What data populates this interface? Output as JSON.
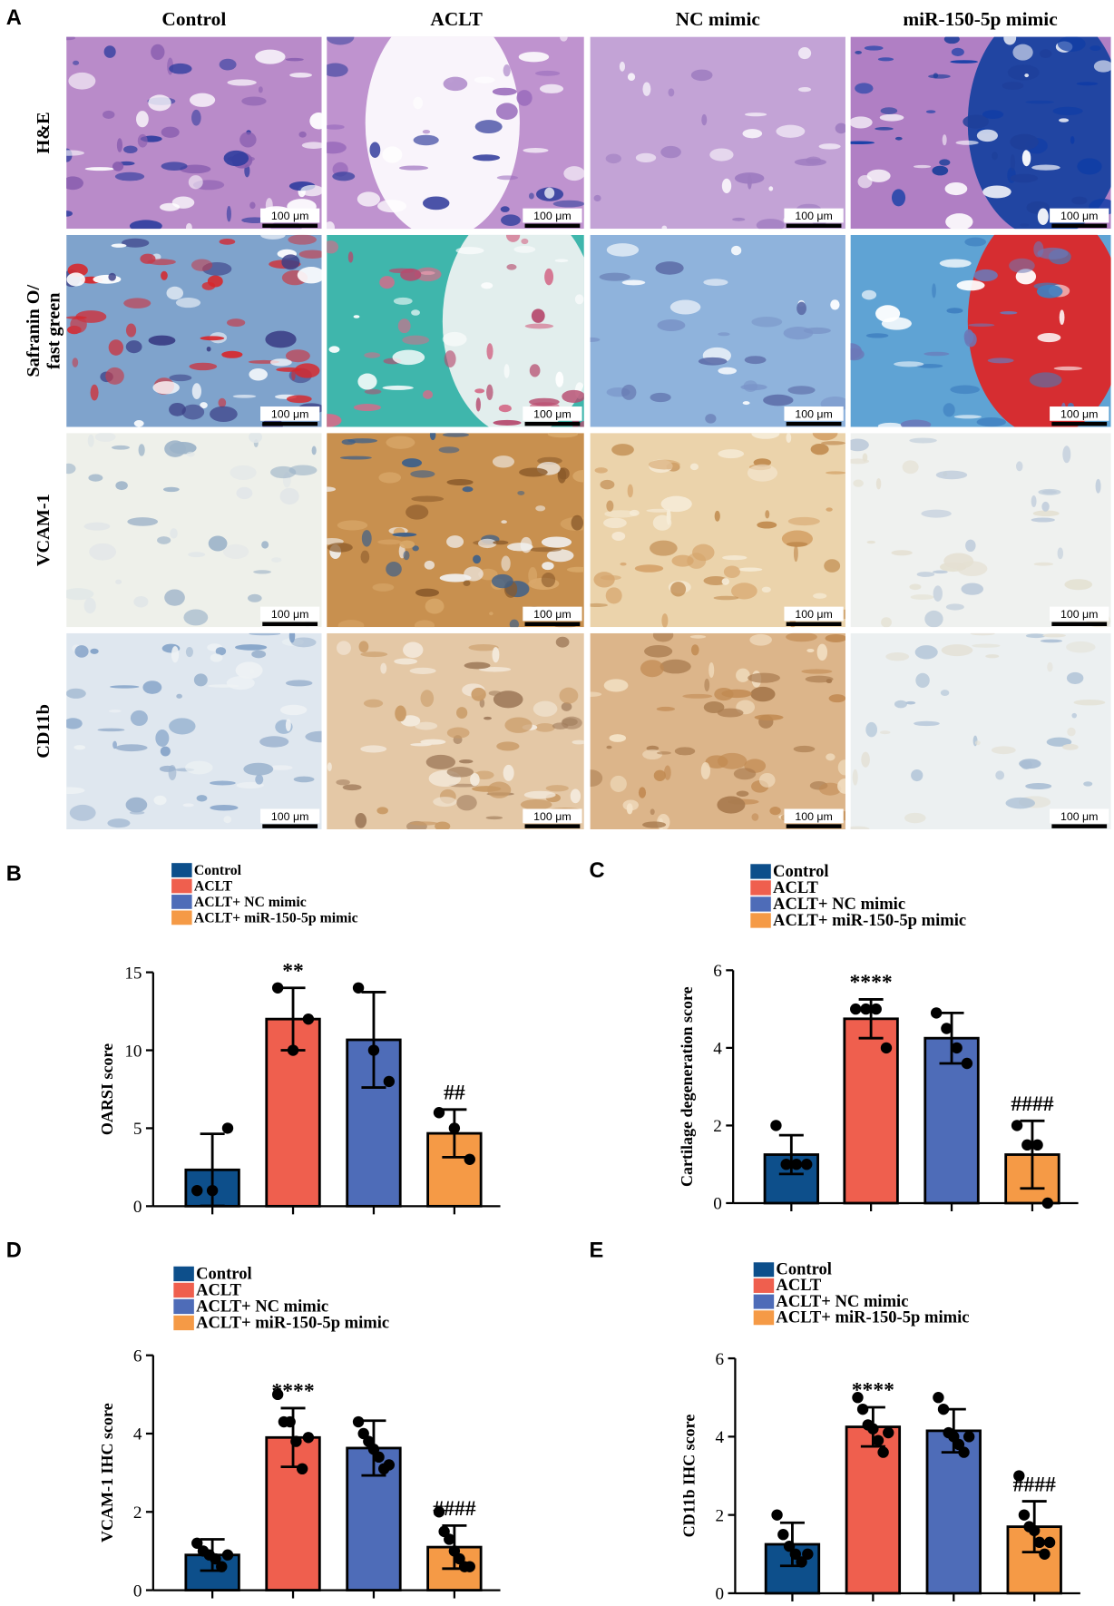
{
  "image_panel": {
    "label": "A",
    "columns": [
      "Control",
      "ACLT",
      "NC mimic",
      "miR-150-5p mimic"
    ],
    "rows": [
      [
        "H&E"
      ],
      [
        "Safranin O/",
        "fast green"
      ],
      [
        "VCAM-1"
      ],
      [
        "CD11b"
      ]
    ],
    "scale_bar": "100 μm"
  },
  "chart_data": [
    {
      "type": "bar",
      "label": "B",
      "ylabel": "OARSI score",
      "categories": [
        "Control",
        "ACLT",
        "ACLT+ NC mimic",
        "ACLT+ miR-150-5p mimic"
      ],
      "colors": [
        "#0d4f8b",
        "#ef5f4e",
        "#4e6cb8",
        "#f59a46"
      ],
      "values": [
        2.33,
        12,
        10.67,
        4.67
      ],
      "errors": [
        2.31,
        2,
        3.06,
        1.53
      ],
      "points": [
        [
          1,
          1,
          5
        ],
        [
          14,
          10,
          12
        ],
        [
          14,
          10,
          8
        ],
        [
          6,
          5,
          3
        ]
      ],
      "annotations": [
        null,
        "**",
        null,
        "##"
      ],
      "ylim": [
        0,
        15
      ],
      "yticks": [
        0,
        5,
        10,
        15
      ]
    },
    {
      "type": "bar",
      "label": "C",
      "ylabel": "Cartilage degeneration score",
      "categories": [
        "Control",
        "ACLT",
        "ACLT+ NC mimic",
        "ACLT+ miR-150-5p mimic"
      ],
      "colors": [
        "#0d4f8b",
        "#ef5f4e",
        "#4e6cb8",
        "#f59a46"
      ],
      "values": [
        1.25,
        4.75,
        4.25,
        1.25
      ],
      "errors": [
        0.5,
        0.5,
        0.65,
        0.87
      ],
      "points": [
        [
          2,
          1,
          1,
          1
        ],
        [
          5,
          5,
          5,
          4
        ],
        [
          4.9,
          4.5,
          4,
          3.6
        ],
        [
          2,
          1.5,
          1.5,
          0
        ]
      ],
      "annotations": [
        null,
        "****",
        null,
        "####"
      ],
      "ylim": [
        0,
        6
      ],
      "yticks": [
        0,
        2,
        4,
        6
      ]
    },
    {
      "type": "bar",
      "label": "D",
      "ylabel": "VCAM-1 IHC score",
      "categories": [
        "Control",
        "ACLT",
        "ACLT+ NC mimic",
        "ACLT+ miR-150-5p mimic"
      ],
      "colors": [
        "#0d4f8b",
        "#ef5f4e",
        "#4e6cb8",
        "#f59a46"
      ],
      "values": [
        0.9,
        3.9,
        3.63,
        1.1
      ],
      "errors": [
        0.4,
        0.75,
        0.7,
        0.55
      ],
      "points": [
        [
          1.2,
          1,
          0.9,
          0.8,
          0.6,
          0.9
        ],
        [
          5,
          4.3,
          4.3,
          3.8,
          3.1,
          3.9
        ],
        [
          4.3,
          4,
          3.8,
          3.6,
          3.4,
          3.1,
          3.2
        ],
        [
          2,
          1.5,
          1.3,
          1,
          0.8,
          0.6,
          0.6
        ]
      ],
      "annotations": [
        null,
        "****",
        null,
        "####"
      ],
      "ylim": [
        0,
        6
      ],
      "yticks": [
        0,
        2,
        4,
        6
      ]
    },
    {
      "type": "bar",
      "label": "E",
      "ylabel": "CD11b IHC score",
      "categories": [
        "Control",
        "ACLT",
        "ACLT+ NC mimic",
        "ACLT+ miR-150-5p mimic"
      ],
      "colors": [
        "#0d4f8b",
        "#ef5f4e",
        "#4e6cb8",
        "#f59a46"
      ],
      "values": [
        1.25,
        4.25,
        4.15,
        1.7
      ],
      "errors": [
        0.55,
        0.5,
        0.55,
        0.65
      ],
      "points": [
        [
          2,
          1.5,
          1.2,
          1,
          0.8,
          1
        ],
        [
          5,
          4.7,
          4.3,
          4.2,
          3.9,
          3.6,
          4.1
        ],
        [
          5,
          4.7,
          4.1,
          4,
          3.8,
          3.6,
          4
        ],
        [
          3,
          2,
          1.7,
          1.6,
          1.3,
          1,
          1.3
        ]
      ],
      "annotations": [
        null,
        "****",
        null,
        "####"
      ],
      "ylim": [
        0,
        6
      ],
      "yticks": [
        0,
        2,
        4,
        6
      ]
    }
  ]
}
